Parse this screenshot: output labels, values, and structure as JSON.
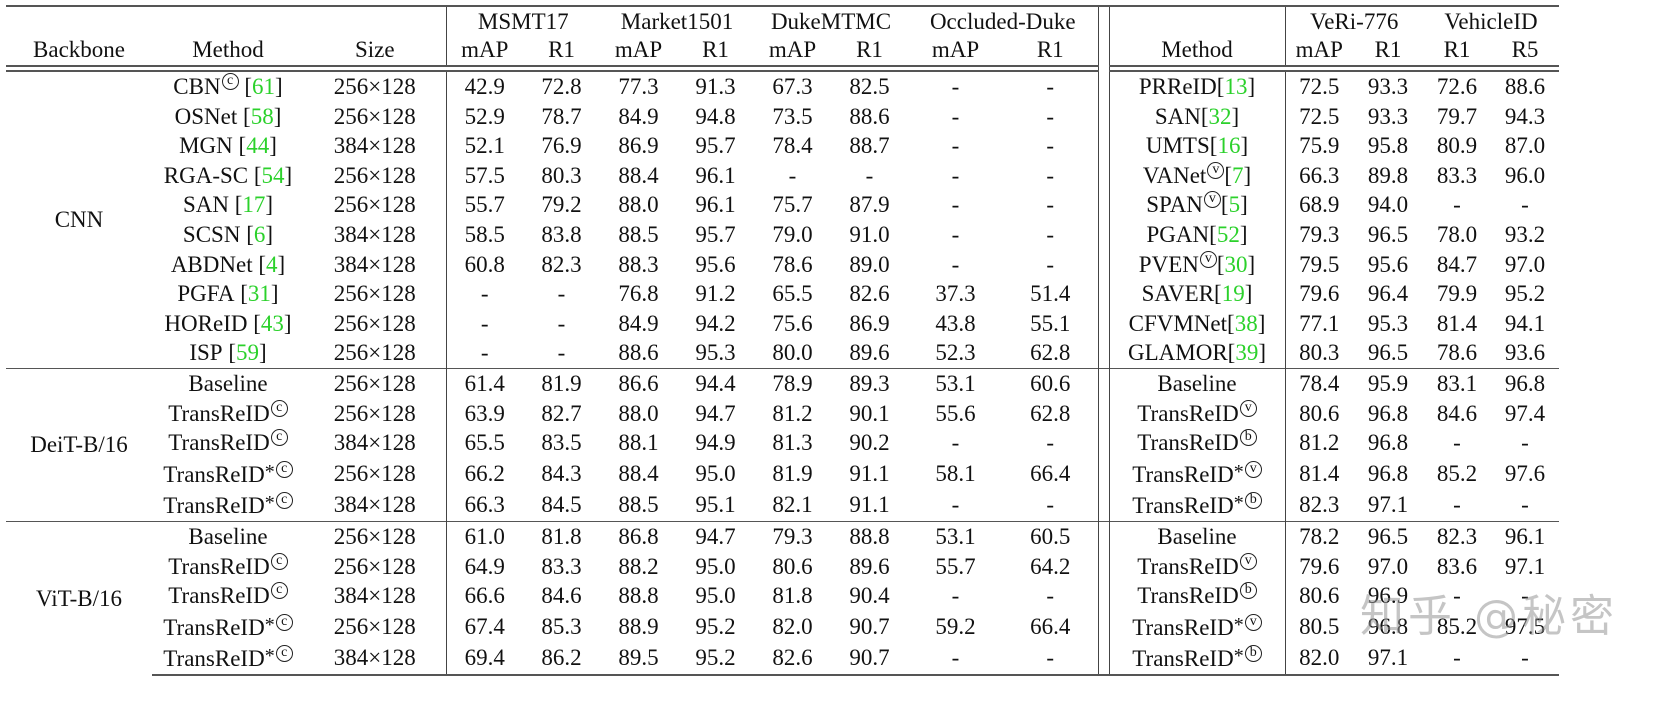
{
  "table": {
    "headers": {
      "backbone": "Backbone",
      "method": "Method",
      "size": "Size",
      "datasets_person": [
        "MSMT17",
        "Market1501",
        "DukeMTMC",
        "Occluded-Duke"
      ],
      "datasets_vehicle": [
        "VeRi-776",
        "VehicleID"
      ],
      "metrics_person": [
        "mAP",
        "R1",
        "mAP",
        "R1",
        "mAP",
        "R1",
        "mAP",
        "R1"
      ],
      "vehicle_method": "Method",
      "metrics_vehicle": [
        "mAP",
        "R1",
        "R1",
        "R5"
      ]
    },
    "groups": [
      {
        "backbone": "CNN",
        "rows": [
          {
            "method": "CBN",
            "mark": "c",
            "star": false,
            "ref": "61",
            "size": "256×128",
            "vals": [
              "42.9",
              "72.8",
              "77.3",
              "91.3",
              "67.3",
              "82.5",
              "-",
              "-"
            ],
            "bold": [],
            "vmethod": "PRReID",
            "vmark": "",
            "vstar": false,
            "vref": "13",
            "vvals": [
              "72.5",
              "93.3",
              "72.6",
              "88.6"
            ],
            "vbold": []
          },
          {
            "method": "OSNet",
            "mark": "",
            "star": false,
            "ref": "58",
            "size": "256×128",
            "vals": [
              "52.9",
              "78.7",
              "84.9",
              "94.8",
              "73.5",
              "88.6",
              "-",
              "-"
            ],
            "bold": [],
            "vmethod": "SAN",
            "vmark": "",
            "vstar": false,
            "vref": "32",
            "vvals": [
              "72.5",
              "93.3",
              "79.7",
              "94.3"
            ],
            "vbold": []
          },
          {
            "method": "MGN",
            "mark": "",
            "star": false,
            "ref": "44",
            "size": "384×128",
            "vals": [
              "52.1",
              "76.9",
              "86.9",
              "95.7",
              "78.4",
              "88.7",
              "-",
              "-"
            ],
            "bold": [],
            "vmethod": "UMTS",
            "vmark": "",
            "vstar": false,
            "vref": "16",
            "vvals": [
              "75.9",
              "95.8",
              "80.9",
              "87.0"
            ],
            "vbold": []
          },
          {
            "method": "RGA-SC",
            "mark": "",
            "star": false,
            "ref": "54",
            "size": "256×128",
            "vals": [
              "57.5",
              "80.3",
              "88.4",
              "96.1",
              "-",
              "-",
              "-",
              "-"
            ],
            "bold": [
              3
            ],
            "vmethod": "VANet",
            "vmark": "v",
            "vstar": false,
            "vref": "7",
            "vvals": [
              "66.3",
              "89.8",
              "83.3",
              "96.0"
            ],
            "vbold": []
          },
          {
            "method": "SAN",
            "mark": "",
            "star": false,
            "ref": "17",
            "size": "256×128",
            "vals": [
              "55.7",
              "79.2",
              "88.0",
              "96.1",
              "75.7",
              "87.9",
              "-",
              "-"
            ],
            "bold": [],
            "vmethod": "SPAN",
            "vmark": "v",
            "vstar": false,
            "vref": "5",
            "vvals": [
              "68.9",
              "94.0",
              "-",
              "-"
            ],
            "vbold": []
          },
          {
            "method": "SCSN",
            "mark": "",
            "star": false,
            "ref": "6",
            "size": "384×128",
            "vals": [
              "58.5",
              "83.8",
              "88.5",
              "95.7",
              "79.0",
              "91.0",
              "-",
              "-"
            ],
            "bold": [
              2,
              5
            ],
            "vmethod": "PGAN",
            "vmark": "",
            "vstar": false,
            "vref": "52",
            "vvals": [
              "79.3",
              "96.5",
              "78.0",
              "93.2"
            ],
            "vbold": []
          },
          {
            "method": "ABDNet",
            "mark": "",
            "star": false,
            "ref": "4",
            "size": "384×128",
            "vals": [
              "60.8",
              "82.3",
              "88.3",
              "95.6",
              "78.6",
              "89.0",
              "-",
              "-"
            ],
            "bold": [
              0,
              1
            ],
            "vmethod": "PVEN",
            "vmark": "v",
            "vstar": false,
            "vref": "30",
            "vvals": [
              "79.5",
              "95.6",
              "84.7",
              "97.0"
            ],
            "vbold": [
              2,
              3
            ]
          },
          {
            "method": "PGFA",
            "mark": "",
            "star": false,
            "ref": "31",
            "size": "256×128",
            "vals": [
              "-",
              "-",
              "76.8",
              "91.2",
              "65.5",
              "82.6",
              "37.3",
              "51.4"
            ],
            "bold": [],
            "vmethod": "SAVER",
            "vmark": "",
            "vstar": false,
            "vref": "19",
            "vvals": [
              "79.6",
              "96.4",
              "79.9",
              "95.2"
            ],
            "vbold": []
          },
          {
            "method": "HOReID",
            "mark": "",
            "star": false,
            "ref": "43",
            "size": "256×128",
            "vals": [
              "-",
              "-",
              "84.9",
              "94.2",
              "75.6",
              "86.9",
              "43.8",
              "55.1"
            ],
            "bold": [],
            "vmethod": "CFVMNet",
            "vmark": "",
            "vstar": false,
            "vref": "38",
            "vvals": [
              "77.1",
              "95.3",
              "81.4",
              "94.1"
            ],
            "vbold": []
          },
          {
            "method": "ISP",
            "mark": "",
            "star": false,
            "ref": "59",
            "size": "256×128",
            "vals": [
              "-",
              "-",
              "88.6",
              "95.3",
              "80.0",
              "89.6",
              "52.3",
              "62.8"
            ],
            "bold": [
              4,
              6,
              7
            ],
            "vmethod": "GLAMOR",
            "vmark": "",
            "vstar": false,
            "vref": "39",
            "vvals": [
              "80.3",
              "96.5",
              "78.6",
              "93.6"
            ],
            "vbold": [
              0,
              1
            ]
          }
        ]
      },
      {
        "backbone": "DeiT-B/16",
        "rows": [
          {
            "method": "Baseline",
            "mark": "",
            "star": false,
            "ref": "",
            "size": "256×128",
            "vals": [
              "61.4",
              "81.9",
              "86.6",
              "94.4",
              "78.9",
              "89.3",
              "53.1",
              "60.6"
            ],
            "bold": [],
            "vmethod": "Baseline",
            "vmark": "",
            "vstar": false,
            "vref": "",
            "vvals": [
              "78.4",
              "95.9",
              "83.1",
              "96.8"
            ],
            "vbold": []
          },
          {
            "method": "TransReID",
            "mark": "c",
            "star": false,
            "ref": "",
            "size": "256×128",
            "vals": [
              "63.9",
              "82.7",
              "88.0",
              "94.7",
              "81.2",
              "90.1",
              "55.6",
              "62.8"
            ],
            "bold": [],
            "vmethod": "TransReID",
            "vmark": "v",
            "vstar": false,
            "vref": "",
            "vvals": [
              "80.6",
              "96.8",
              "84.6",
              "97.4"
            ],
            "vbold": []
          },
          {
            "method": "TransReID",
            "mark": "c",
            "star": false,
            "ref": "",
            "size": "384×128",
            "vals": [
              "65.5",
              "83.5",
              "88.1",
              "94.9",
              "81.3",
              "90.2",
              "-",
              "-"
            ],
            "bold": [],
            "vmethod": "TransReID",
            "vmark": "b",
            "vstar": false,
            "vref": "",
            "vvals": [
              "81.2",
              "96.8",
              "-",
              "-"
            ],
            "vbold": []
          },
          {
            "method": "TransReID",
            "mark": "c",
            "star": true,
            "ref": "",
            "size": "256×128",
            "vals": [
              "66.2",
              "84.3",
              "88.4",
              "95.0",
              "81.9",
              "91.1",
              "58.1",
              "66.4"
            ],
            "bold": [
              0,
              1,
              2,
              3,
              4,
              5,
              6,
              7
            ],
            "vmethod": "TransReID",
            "vmark": "v",
            "vstar": true,
            "vref": "",
            "vvals": [
              "81.4",
              "96.8",
              "85.2",
              "97.6"
            ],
            "vbold": [
              2,
              3
            ]
          },
          {
            "method": "TransReID",
            "mark": "c",
            "star": true,
            "ref": "",
            "size": "384×128",
            "vals": [
              "66.3",
              "84.5",
              "88.5",
              "95.1",
              "82.1",
              "91.1",
              "-",
              "-"
            ],
            "bold": [
              0,
              1,
              2,
              3,
              4,
              5
            ],
            "vmethod": "TransReID",
            "vmark": "b",
            "vstar": true,
            "vref": "",
            "vvals": [
              "82.3",
              "97.1",
              "-",
              "-"
            ],
            "vbold": [
              0,
              1
            ]
          }
        ]
      },
      {
        "backbone": "ViT-B/16",
        "rows": [
          {
            "method": "Baseline",
            "mark": "",
            "star": false,
            "ref": "",
            "size": "256×128",
            "vals": [
              "61.0",
              "81.8",
              "86.8",
              "94.7",
              "79.3",
              "88.8",
              "53.1",
              "60.5"
            ],
            "bold": [],
            "vmethod": "Baseline",
            "vmark": "",
            "vstar": false,
            "vref": "",
            "vvals": [
              "78.2",
              "96.5",
              "82.3",
              "96.1"
            ],
            "vbold": []
          },
          {
            "method": "TransReID",
            "mark": "c",
            "star": false,
            "ref": "",
            "size": "256×128",
            "vals": [
              "64.9",
              "83.3",
              "88.2",
              "95.0",
              "80.6",
              "89.6",
              "55.7",
              "64.2"
            ],
            "bold": [],
            "vmethod": "TransReID",
            "vmark": "v",
            "vstar": false,
            "vref": "",
            "vvals": [
              "79.6",
              "97.0",
              "83.6",
              "97.1"
            ],
            "vbold": []
          },
          {
            "method": "TransReID",
            "mark": "c",
            "star": false,
            "ref": "",
            "size": "384×128",
            "vals": [
              "66.6",
              "84.6",
              "88.8",
              "95.0",
              "81.8",
              "90.4",
              "-",
              "-"
            ],
            "bold": [],
            "vmethod": "TransReID",
            "vmark": "b",
            "vstar": false,
            "vref": "",
            "vvals": [
              "80.6",
              "96.9",
              "-",
              "-"
            ],
            "vbold": []
          },
          {
            "method": "TransReID",
            "mark": "c",
            "star": true,
            "ref": "",
            "size": "256×128",
            "vals": [
              "67.4",
              "85.3",
              "88.9",
              "95.2",
              "82.0",
              "90.7",
              "59.2",
              "66.4"
            ],
            "bold": [
              0,
              1,
              2,
              3,
              4,
              5,
              6,
              7
            ],
            "vmethod": "TransReID",
            "vmark": "v",
            "vstar": true,
            "vref": "",
            "vvals": [
              "80.5",
              "96.8",
              "85.2",
              "97.5"
            ],
            "vbold": [
              2,
              3
            ]
          },
          {
            "method": "TransReID",
            "mark": "c",
            "star": true,
            "ref": "",
            "size": "384×128",
            "vals": [
              "69.4",
              "86.2",
              "89.5",
              "95.2",
              "82.6",
              "90.7",
              "-",
              "-"
            ],
            "bold": [
              0,
              1,
              2,
              3,
              4,
              5
            ],
            "vmethod": "TransReID",
            "vmark": "b",
            "vstar": true,
            "vref": "",
            "vvals": [
              "82.0",
              "97.1",
              "-",
              "-"
            ],
            "vbold": [
              0,
              1
            ]
          }
        ]
      }
    ]
  },
  "colors": {
    "reference_link": "#2bd12b",
    "text": "#111111",
    "rules": "#555555"
  },
  "watermark": "知乎 @秘密"
}
